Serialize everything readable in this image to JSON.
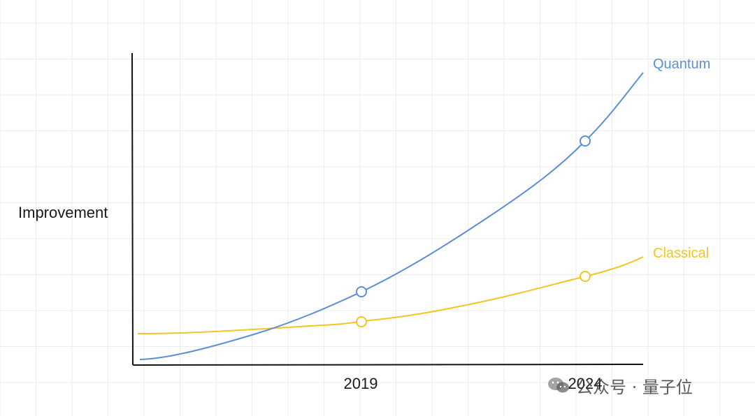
{
  "chart_data": {
    "type": "line",
    "title": "",
    "xlabel": "",
    "ylabel": "Improvement",
    "x_ticks": [
      "2019",
      "2024"
    ],
    "grid": true,
    "axis_ticks_numeric": false,
    "series": [
      {
        "name": "Quantum",
        "color": "#5B8FD6",
        "marked_points": [
          "2019",
          "2024"
        ],
        "shape": "exponential growth, starts lowest and overtakes Classical before 2019"
      },
      {
        "name": "Classical",
        "color": "#F2C523",
        "marked_points": [
          "2019",
          "2024"
        ],
        "shape": "slow steady growth"
      }
    ]
  },
  "watermark": {
    "text": "公众号 · 量子位",
    "icon": "wechat-icon"
  }
}
